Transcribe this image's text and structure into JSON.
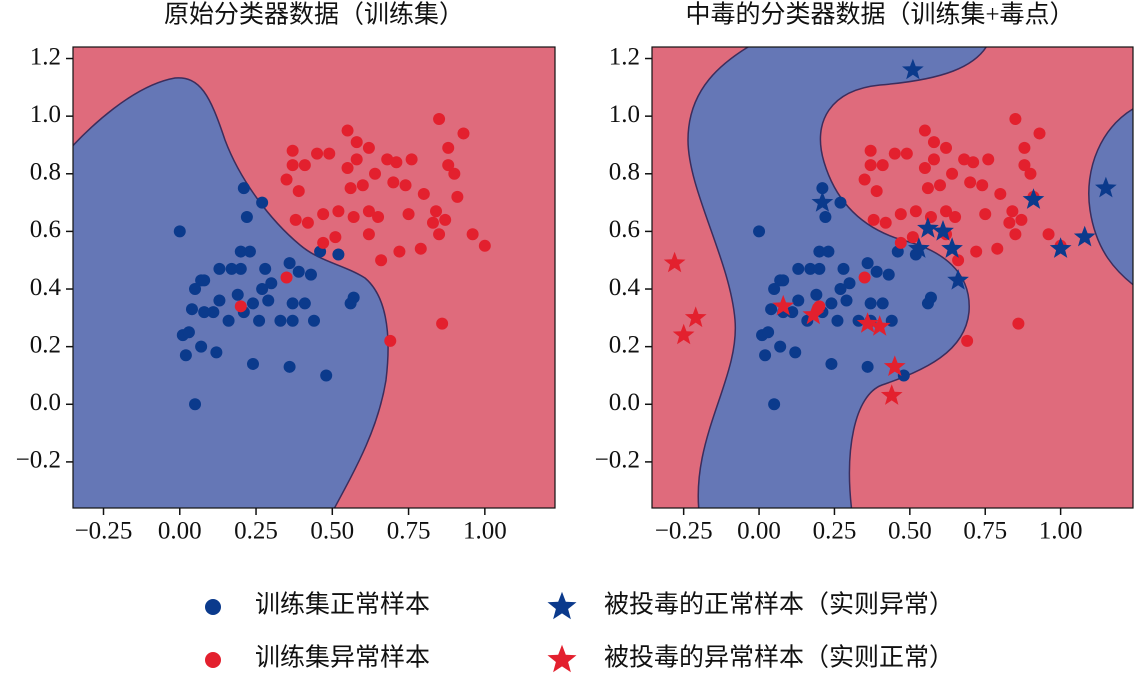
{
  "chart_data": [
    {
      "type": "scatter",
      "title": "原始分类器数据（训练集）",
      "xlim": [
        -0.35,
        1.23
      ],
      "ylim": [
        -0.36,
        1.24
      ],
      "xticks": [
        {
          "value": -0.25,
          "label": "−0.25"
        },
        {
          "value": 0,
          "label": "0.00"
        },
        {
          "value": 0.25,
          "label": "0.25"
        },
        {
          "value": 0.5,
          "label": "0.50"
        },
        {
          "value": 0.75,
          "label": "0.75"
        },
        {
          "value": 1,
          "label": "1.00"
        }
      ],
      "yticks": [
        {
          "value": -0.2,
          "label": "−0.2"
        },
        {
          "value": 0,
          "label": "0.0"
        },
        0.2,
        0.4,
        0.6,
        0.8,
        {
          "value": 1,
          "label": "1.0"
        },
        1.2
      ],
      "series": [
        {
          "name": "训练集正常样本",
          "color": "#0b3a8c",
          "marker": "circle",
          "x": [
            0.0,
            0.21,
            0.27,
            0.22,
            0.2,
            0.23,
            0.17,
            0.13,
            0.07,
            0.08,
            0.05,
            0.2,
            0.28,
            0.36,
            0.39,
            0.43,
            0.3,
            0.27,
            0.19,
            0.13,
            0.11,
            0.16,
            0.21,
            0.24,
            0.29,
            0.37,
            0.41,
            0.37,
            0.33,
            0.26,
            0.44,
            0.01,
            0.03,
            0.04,
            0.08,
            0.02,
            0.07,
            0.12,
            0.24,
            0.36,
            0.48,
            0.05,
            0.57,
            0.56,
            0.52,
            0.46
          ],
          "y": [
            0.6,
            0.75,
            0.7,
            0.65,
            0.53,
            0.53,
            0.47,
            0.47,
            0.43,
            0.43,
            0.4,
            0.47,
            0.47,
            0.49,
            0.46,
            0.45,
            0.42,
            0.4,
            0.38,
            0.36,
            0.32,
            0.29,
            0.32,
            0.35,
            0.36,
            0.35,
            0.35,
            0.29,
            0.29,
            0.29,
            0.29,
            0.24,
            0.25,
            0.33,
            0.32,
            0.17,
            0.2,
            0.18,
            0.14,
            0.13,
            0.1,
            0.0,
            0.37,
            0.35,
            0.52,
            0.53
          ]
        },
        {
          "name": "训练集异常样本",
          "color": "#e3202e",
          "marker": "circle",
          "x": [
            0.2,
            0.35,
            0.69,
            0.86,
            0.37,
            0.37,
            0.41,
            0.45,
            0.49,
            0.55,
            0.58,
            0.58,
            0.62,
            0.68,
            0.71,
            0.76,
            0.55,
            0.56,
            0.6,
            0.64,
            0.7,
            0.74,
            0.8,
            0.85,
            0.93,
            0.88,
            0.88,
            0.9,
            0.91,
            0.84,
            0.87,
            0.83,
            0.75,
            0.65,
            0.62,
            0.57,
            0.52,
            0.47,
            0.42,
            0.38,
            0.35,
            0.39,
            0.47,
            0.51,
            0.62,
            0.66,
            0.72,
            0.79,
            1.0,
            0.96,
            0.85
          ],
          "y": [
            0.34,
            0.44,
            0.22,
            0.28,
            0.88,
            0.83,
            0.83,
            0.87,
            0.87,
            0.95,
            0.91,
            0.85,
            0.89,
            0.85,
            0.84,
            0.85,
            0.82,
            0.75,
            0.76,
            0.8,
            0.77,
            0.76,
            0.73,
            0.99,
            0.94,
            0.89,
            0.83,
            0.8,
            0.72,
            0.67,
            0.64,
            0.63,
            0.66,
            0.65,
            0.67,
            0.65,
            0.67,
            0.66,
            0.63,
            0.64,
            0.78,
            0.74,
            0.56,
            0.58,
            0.59,
            0.5,
            0.53,
            0.54,
            0.55,
            0.59,
            0.59
          ]
        }
      ]
    },
    {
      "type": "scatter",
      "title": "中毒的分类器数据（训练集+毒点）",
      "xlim": [
        -0.355,
        1.24
      ],
      "ylim": [
        -0.36,
        1.24
      ],
      "xticks": [
        {
          "value": -0.25,
          "label": "−0.25"
        },
        {
          "value": 0,
          "label": "0.00"
        },
        {
          "value": 0.25,
          "label": "0.25"
        },
        {
          "value": 0.5,
          "label": "0.50"
        },
        {
          "value": 0.75,
          "label": "0.75"
        },
        {
          "value": 1,
          "label": "1.00"
        }
      ],
      "yticks": [
        {
          "value": -0.2,
          "label": "−0.2"
        },
        {
          "value": 0,
          "label": "0.0"
        },
        0.2,
        0.4,
        0.6,
        0.8,
        {
          "value": 1,
          "label": "1.0"
        },
        1.2
      ],
      "series": [
        {
          "name": "被投毒的正常样本（实则异常）",
          "color": "#0b3a8c",
          "marker": "star",
          "x": [
            0.51,
            0.21,
            0.56,
            0.61,
            0.53,
            0.64,
            0.66,
            0.91,
            1.0,
            1.08,
            1.15
          ],
          "y": [
            1.16,
            0.7,
            0.61,
            0.6,
            0.54,
            0.54,
            0.43,
            0.71,
            0.54,
            0.58,
            0.75
          ]
        },
        {
          "name": "被投毒的异常样本（实则正常）",
          "color": "#e3202e",
          "marker": "star",
          "x": [
            -0.28,
            -0.21,
            -0.25,
            0.08,
            0.18,
            0.36,
            0.4,
            0.45,
            0.44
          ],
          "y": [
            0.49,
            0.3,
            0.24,
            0.34,
            0.31,
            0.28,
            0.27,
            0.13,
            0.03
          ]
        }
      ]
    }
  ]
}
